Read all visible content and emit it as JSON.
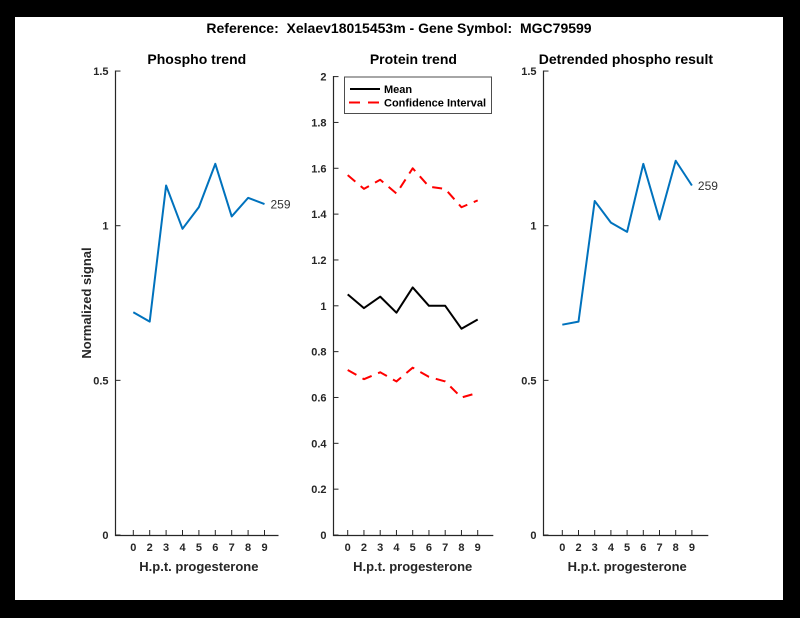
{
  "figure_title": "Reference:  Xelaev18015453m - Gene Symbol:  MGC79599",
  "xlabel": "H.p.t. progesterone",
  "ylabel": "Normalized signal",
  "legend": {
    "mean": "Mean",
    "ci": "Confidence Interval"
  },
  "annotation": "259",
  "colors": {
    "background": "#000000",
    "canvas": "#ffffff",
    "axis": "#262626",
    "phospho_line": "#0072BD",
    "mean_line": "#000000",
    "ci_line": "#ff0000"
  },
  "chart_data": [
    {
      "id": "phospho",
      "type": "line",
      "title": "Phospho trend",
      "xlabel": "H.p.t. progesterone",
      "ylabel": "Normalized signal",
      "x_labels": [
        "0",
        "2",
        "3",
        "4",
        "5",
        "6",
        "7",
        "8",
        "9"
      ],
      "x_values": [
        0,
        2,
        3,
        4,
        5,
        6,
        7,
        8,
        9
      ],
      "values": [
        0.72,
        0.69,
        1.13,
        0.99,
        1.06,
        1.2,
        1.03,
        1.09,
        1.07
      ],
      "annotation": "259",
      "ylim": [
        0,
        1.5
      ],
      "yticks": {
        "values": [
          0,
          0.5,
          1,
          1.5
        ],
        "labels": [
          "0",
          "0.5",
          "1",
          "1.5"
        ]
      },
      "line_color": "#0072BD",
      "grid": false,
      "legend_position": "none"
    },
    {
      "id": "protein",
      "type": "line",
      "title": "Protein trend",
      "xlabel": "H.p.t. progesterone",
      "x_labels": [
        "0",
        "2",
        "3",
        "4",
        "5",
        "6",
        "7",
        "8",
        "9"
      ],
      "x_values": [
        0,
        2,
        3,
        4,
        5,
        6,
        7,
        8,
        9
      ],
      "ylim": [
        0,
        2
      ],
      "yticks": {
        "values": [
          0,
          0.2,
          0.4,
          0.6,
          0.8,
          1,
          1.2,
          1.4,
          1.6,
          1.8,
          2
        ],
        "labels": [
          "0",
          "0.2",
          "0.4",
          "0.6",
          "0.8",
          "1",
          "1.2",
          "1.4",
          "1.6",
          "1.8",
          "2"
        ]
      },
      "series": [
        {
          "name": "Mean",
          "style": "solid",
          "color": "#000000",
          "values": [
            1.05,
            0.99,
            1.04,
            0.97,
            1.08,
            1.0,
            1.0,
            0.9,
            0.94
          ]
        },
        {
          "name": "Confidence Interval upper",
          "style": "dashed",
          "color": "#ff0000",
          "values": [
            1.57,
            1.51,
            1.55,
            1.49,
            1.6,
            1.52,
            1.51,
            1.43,
            1.46
          ]
        },
        {
          "name": "Confidence Interval lower",
          "style": "dashed",
          "color": "#ff0000",
          "values": [
            0.72,
            0.68,
            0.71,
            0.67,
            0.73,
            0.69,
            0.67,
            0.6,
            0.62
          ]
        }
      ],
      "grid": false,
      "legend_position": "top-left"
    },
    {
      "id": "detrended",
      "type": "line",
      "title": "Detrended phospho result",
      "xlabel": "H.p.t. progesterone",
      "x_labels": [
        "0",
        "2",
        "3",
        "4",
        "5",
        "6",
        "7",
        "8",
        "9"
      ],
      "x_values": [
        0,
        2,
        3,
        4,
        5,
        6,
        7,
        8,
        9
      ],
      "values": [
        0.68,
        0.69,
        1.08,
        1.01,
        0.98,
        1.2,
        1.02,
        1.21,
        1.13
      ],
      "annotation": "259",
      "ylim": [
        0,
        1.5
      ],
      "yticks": {
        "values": [
          0,
          0.5,
          1,
          1.5
        ],
        "labels": [
          "0",
          "0.5",
          "1",
          "1.5"
        ]
      },
      "line_color": "#0072BD",
      "grid": false,
      "legend_position": "none"
    }
  ]
}
